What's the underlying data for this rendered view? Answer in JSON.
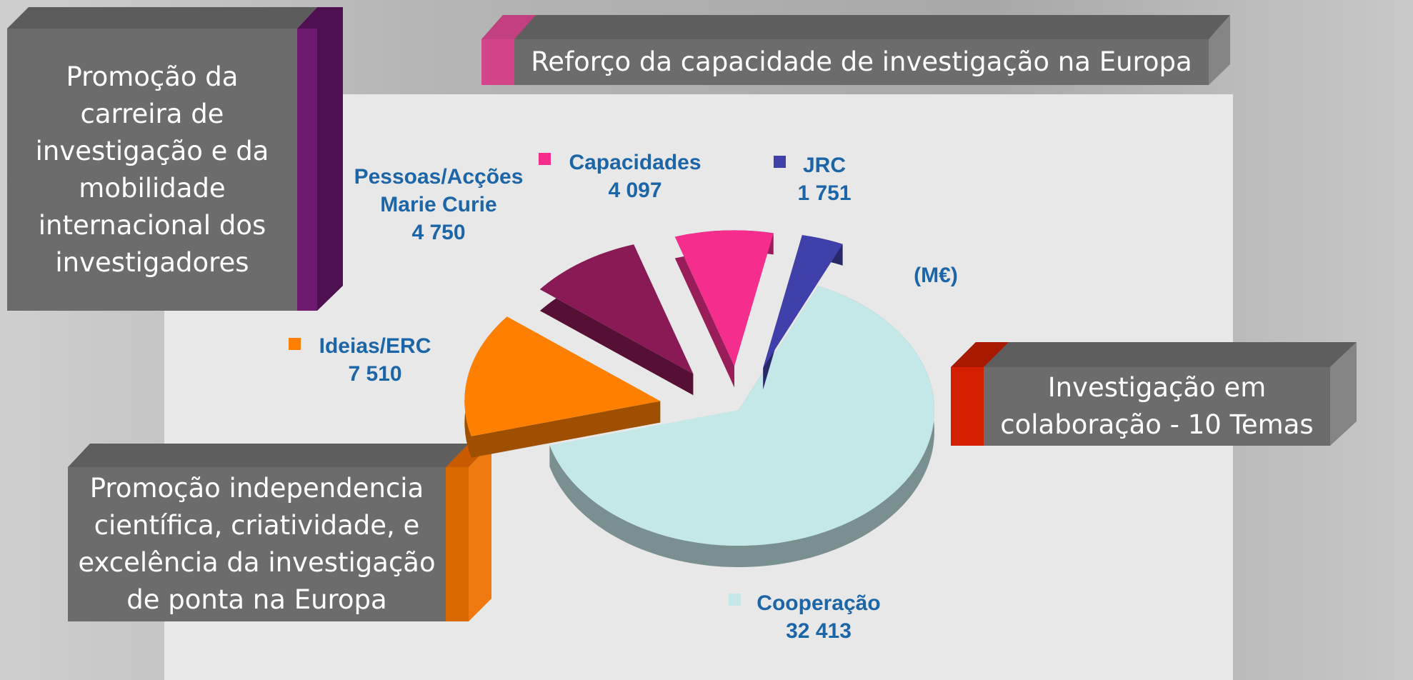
{
  "chart_data": {
    "type": "pie",
    "unit_label": "(M€)",
    "categories": [
      "Cooperação",
      "Ideias/ERC",
      "Pessoas/Acções Marie Curie",
      "Capacidades",
      "JRC"
    ],
    "values": [
      32413,
      7510,
      4750,
      4097,
      1751
    ],
    "value_labels": [
      "32 413",
      "7 510",
      "4 750",
      "4 097",
      "1 751"
    ],
    "colors": [
      "#c4e7e8",
      "#ff8000",
      "#8a1a56",
      "#f52e8e",
      "#4040aa"
    ]
  },
  "annotations": [
    {
      "lines": [
        "Promoção da",
        "carreira de",
        "investigação e da",
        "mobilidade",
        "internacional dos",
        "investigadores"
      ]
    },
    {
      "lines": [
        "Reforço da capacidade de investigação na Europa"
      ]
    },
    {
      "lines": [
        "Investigação em",
        "colaboração - 10 Temas"
      ]
    },
    {
      "lines": [
        "Promoção independencia",
        "científica, criatividade, e",
        "excelência da investigação",
        "de ponta na Europa"
      ]
    }
  ]
}
